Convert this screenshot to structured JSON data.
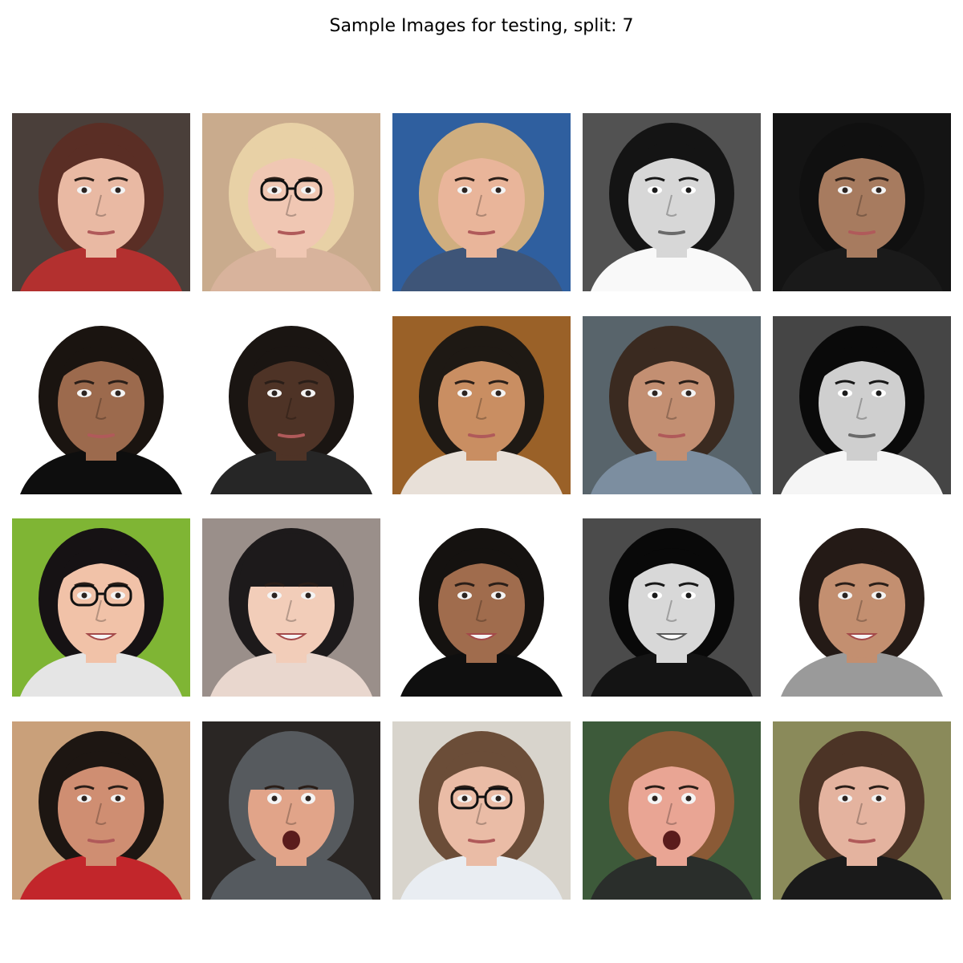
{
  "figure": {
    "title": "Sample Images for testing, split: 7"
  },
  "images": [
    {
      "name": "face-woman-flowers",
      "bg": "#4a3f3a",
      "skin": "#e9b9a3",
      "hair": "#5a2e25",
      "clothing": "#b3302f",
      "grayscale": false,
      "glasses": false,
      "hat": false,
      "expression": "neutral"
    },
    {
      "name": "face-blonde-glasses",
      "bg": "#c9ab8d",
      "skin": "#f0c7b3",
      "hair": "#e8d1a6",
      "clothing": "#d8b39c",
      "grayscale": false,
      "glasses": true,
      "hat": false,
      "expression": "neutral"
    },
    {
      "name": "face-girl-blue-sky",
      "bg": "#2f5f9f",
      "skin": "#e9b59a",
      "hair": "#cfae7f",
      "clothing": "#3e5578",
      "grayscale": false,
      "glasses": false,
      "hat": false,
      "expression": "neutral"
    },
    {
      "name": "face-bw-woman-1",
      "bg": "#565656",
      "skin": "#cfcfcf",
      "hair": "#1e1e1e",
      "clothing": "#eeeeee",
      "grayscale": true,
      "glasses": false,
      "hat": false,
      "expression": "neutral"
    },
    {
      "name": "face-man-hood",
      "bg": "#141414",
      "skin": "#a77b5f",
      "hair": "#101010",
      "clothing": "#1a1a1a",
      "grayscale": false,
      "glasses": false,
      "hat": false,
      "expression": "neutral"
    },
    {
      "name": "face-woman-white-bg",
      "bg": "#ffffff",
      "skin": "#9c6a4d",
      "hair": "#1a1410",
      "clothing": "#0e0e0e",
      "grayscale": false,
      "glasses": false,
      "hat": false,
      "expression": "neutral"
    },
    {
      "name": "face-man-white-bg",
      "bg": "#ffffff",
      "skin": "#4e3326",
      "hair": "#1a1512",
      "clothing": "#262626",
      "grayscale": false,
      "glasses": false,
      "hat": false,
      "expression": "neutral"
    },
    {
      "name": "face-man-closeup",
      "bg": "#9a6128",
      "skin": "#c98e62",
      "hair": "#1e1914",
      "clothing": "#e8e0d8",
      "grayscale": false,
      "glasses": false,
      "hat": false,
      "expression": "neutral"
    },
    {
      "name": "face-bearded-man",
      "bg": "#58646b",
      "skin": "#c38f72",
      "hair": "#3a2a20",
      "clothing": "#7c8ea0",
      "grayscale": false,
      "glasses": false,
      "hat": false,
      "expression": "neutral"
    },
    {
      "name": "face-bw-woman-2",
      "bg": "#4a4a4a",
      "skin": "#c8c8c8",
      "hair": "#151515",
      "clothing": "#eaeaea",
      "grayscale": true,
      "glasses": false,
      "hat": false,
      "expression": "neutral"
    },
    {
      "name": "face-girl-black-glasses",
      "bg": "#7fb534",
      "skin": "#f1c2a8",
      "hair": "#161214",
      "clothing": "#e5e5e5",
      "grayscale": false,
      "glasses": true,
      "hat": false,
      "expression": "smile"
    },
    {
      "name": "face-girl-knit-hat",
      "bg": "#9a8f8a",
      "skin": "#f2cdb9",
      "hair": "#1d1a1b",
      "clothing": "#e9d7ce",
      "grayscale": false,
      "glasses": false,
      "hat": true,
      "expression": "smile"
    },
    {
      "name": "face-smiling-woman",
      "bg": "#ffffff",
      "skin": "#a06c4d",
      "hair": "#151210",
      "clothing": "#0f0f0f",
      "grayscale": false,
      "glasses": false,
      "hat": false,
      "expression": "smile"
    },
    {
      "name": "face-bw-woman-smile",
      "bg": "#505050",
      "skin": "#d0d0d0",
      "hair": "#141414",
      "clothing": "#1e1e1e",
      "grayscale": true,
      "glasses": false,
      "hat": false,
      "expression": "smile"
    },
    {
      "name": "face-woman-tank-top",
      "bg": "#ffffff",
      "skin": "#c38f70",
      "hair": "#241a16",
      "clothing": "#9a9a9a",
      "grayscale": false,
      "glasses": false,
      "hat": false,
      "expression": "smile"
    },
    {
      "name": "face-man-red-shirt",
      "bg": "#c9a07a",
      "skin": "#cf8e72",
      "hair": "#1d1612",
      "clothing": "#c2262b",
      "grayscale": false,
      "glasses": false,
      "hat": false,
      "expression": "neutral"
    },
    {
      "name": "face-man-surprised",
      "bg": "#2a2624",
      "skin": "#e1a489",
      "hair": "#565a5e",
      "clothing": "#555a5f",
      "grayscale": false,
      "glasses": false,
      "hat": true,
      "expression": "open"
    },
    {
      "name": "face-woman-microphone",
      "bg": "#d8d4cc",
      "skin": "#eabca6",
      "hair": "#6b4d38",
      "clothing": "#e9edf2",
      "grayscale": false,
      "glasses": true,
      "hat": false,
      "expression": "neutral"
    },
    {
      "name": "face-young-man",
      "bg": "#3d5a3a",
      "skin": "#e9a594",
      "hair": "#8a5a36",
      "clothing": "#2a2e2b",
      "grayscale": false,
      "glasses": false,
      "hat": false,
      "expression": "open"
    },
    {
      "name": "face-man-long-hair",
      "bg": "#8a8a5a",
      "skin": "#e4b39f",
      "hair": "#4c3426",
      "clothing": "#1a1a1a",
      "grayscale": false,
      "glasses": false,
      "hat": false,
      "expression": "neutral"
    }
  ]
}
